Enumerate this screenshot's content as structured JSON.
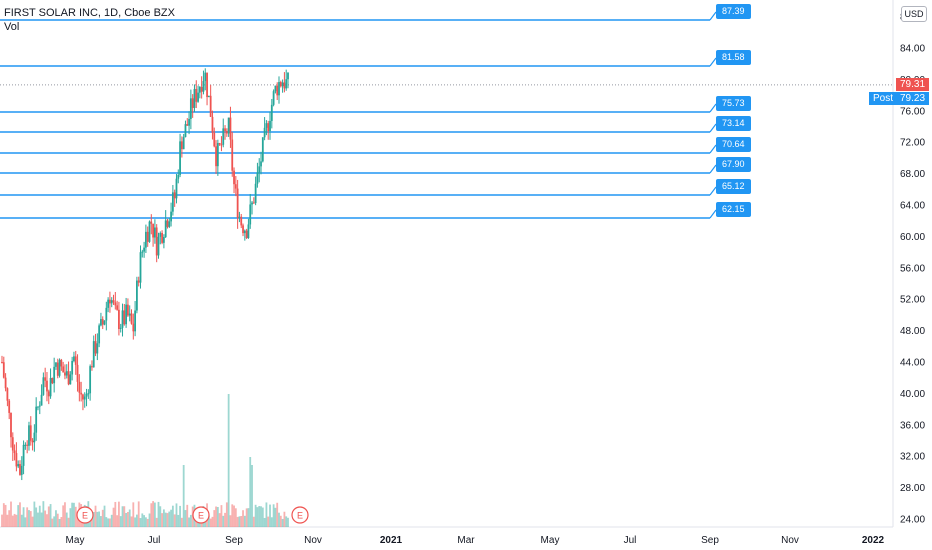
{
  "legend": {
    "symbol": "FIRST SOLAR INC, 1D, Cboe BZX",
    "volume_label": "Vol"
  },
  "currency_button": "USD",
  "last_price": {
    "value": "79.31",
    "post_label": "Post",
    "post_value": "79.23",
    "last_color": "#ef5350",
    "post_color": "#2196f3"
  },
  "colors": {
    "up": "#26a69a",
    "down": "#ef5350",
    "level": "#2196f3"
  },
  "earnings_marker": "E",
  "chart_data": {
    "type": "candlestick",
    "title": "FIRST SOLAR INC, 1D, Cboe BZX",
    "y_ticks": [
      24,
      28,
      32,
      36,
      40,
      44,
      48,
      52,
      56,
      60,
      64,
      68,
      72,
      76,
      80,
      84,
      88
    ],
    "y_tick_labels": [
      "24.00",
      "28.00",
      "32.00",
      "36.00",
      "40.00",
      "44.00",
      "48.00",
      "52.00",
      "56.00",
      "60.00",
      "64.00",
      "68.00",
      "72.00",
      "76.00",
      "80.00",
      "84.00",
      "88.00"
    ],
    "x_ticks": [
      "May",
      "Jul",
      "Sep",
      "Nov",
      "2021",
      "Mar",
      "May",
      "Jul",
      "Sep",
      "Nov",
      "2022"
    ],
    "levels": [
      87.39,
      81.58,
      75.73,
      73.14,
      70.64,
      67.9,
      65.12,
      62.15
    ],
    "level_labels": [
      "87.39",
      "81.58",
      "75.73",
      "73.14",
      "70.64",
      "67.90",
      "65.12",
      "62.15"
    ],
    "earnings_dates": [
      "May 2020",
      "Aug 2020",
      "Oct 2020"
    ],
    "price_path": [
      [
        "Mar",
        44
      ],
      [
        "Mar",
        38
      ],
      [
        "Mar",
        33
      ],
      [
        "Apr",
        30
      ],
      [
        "Apr",
        35
      ],
      [
        "Apr",
        34
      ],
      [
        "Apr",
        38
      ],
      [
        "Apr",
        42
      ],
      [
        "Apr",
        41
      ],
      [
        "May",
        44
      ],
      [
        "May",
        43
      ],
      [
        "May",
        42
      ],
      [
        "May",
        45
      ],
      [
        "May",
        40
      ],
      [
        "May",
        39
      ],
      [
        "Jun",
        44
      ],
      [
        "Jun",
        47
      ],
      [
        "Jun",
        49
      ],
      [
        "Jun",
        53
      ],
      [
        "Jun",
        50
      ],
      [
        "Jun",
        49
      ],
      [
        "Jul",
        50
      ],
      [
        "Jul",
        48
      ],
      [
        "Jul",
        56
      ],
      [
        "Jul",
        60
      ],
      [
        "Jul",
        62
      ],
      [
        "Jul",
        59
      ],
      [
        "Aug",
        61
      ],
      [
        "Aug",
        63
      ],
      [
        "Aug",
        65
      ],
      [
        "Aug",
        72
      ],
      [
        "Aug",
        74
      ],
      [
        "Aug",
        77
      ],
      [
        "Aug",
        79
      ],
      [
        "Sep",
        81
      ],
      [
        "Sep",
        76
      ],
      [
        "Sep",
        70
      ],
      [
        "Sep",
        72
      ],
      [
        "Sep",
        74
      ],
      [
        "Sep",
        66
      ],
      [
        "Sep",
        62
      ],
      [
        "Sep",
        61
      ],
      [
        "Oct",
        64
      ],
      [
        "Oct",
        68
      ],
      [
        "Oct",
        72
      ],
      [
        "Oct",
        76
      ],
      [
        "Oct",
        79
      ],
      [
        "Oct",
        80
      ],
      [
        "Oct",
        79.31
      ]
    ]
  }
}
